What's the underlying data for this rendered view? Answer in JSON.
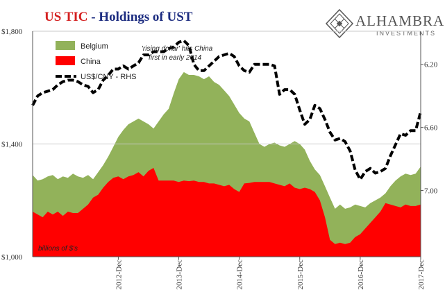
{
  "header": {
    "title": "US TIC",
    "subtitle": " - Holdings of UST"
  },
  "logo": {
    "name": "ALHAMBRA",
    "sub": "INVESTMENTS"
  },
  "chart_data": {
    "type": "area",
    "title": "US TIC - Holdings of UST",
    "units_note": "billions of $'s",
    "annotation": [
      "'rising dollar' hits China",
      "first in early 2014"
    ],
    "legend": [
      {
        "name": "Belgium",
        "color": "#92b25a",
        "kind": "area"
      },
      {
        "name": "China",
        "color": "#ff0000",
        "kind": "area"
      },
      {
        "name": "US$/CNY - RHS",
        "color": "#000000",
        "kind": "dashed-line"
      }
    ],
    "x_tick_labels": [
      "2012-Dec",
      "2013-Dec",
      "2014-Dec",
      "2015-Dec",
      "2016-Dec",
      "2017-Dec"
    ],
    "y_left": {
      "ticks": [
        "$1,000",
        "$1,400",
        "$1,800"
      ],
      "ylim": [
        1000,
        1800
      ]
    },
    "y_right": {
      "ticks": [
        "6.20",
        "6.60",
        "7.00"
      ],
      "ylim": [
        5.99,
        7.42
      ],
      "inverted": true
    },
    "x": [
      "2011-07",
      "2011-08",
      "2011-09",
      "2011-10",
      "2011-11",
      "2011-12",
      "2012-01",
      "2012-02",
      "2012-03",
      "2012-04",
      "2012-05",
      "2012-06",
      "2012-07",
      "2012-08",
      "2012-09",
      "2012-10",
      "2012-11",
      "2012-12",
      "2013-01",
      "2013-02",
      "2013-03",
      "2013-04",
      "2013-05",
      "2013-06",
      "2013-07",
      "2013-08",
      "2013-09",
      "2013-10",
      "2013-11",
      "2013-12",
      "2014-01",
      "2014-02",
      "2014-03",
      "2014-04",
      "2014-05",
      "2014-06",
      "2014-07",
      "2014-08",
      "2014-09",
      "2014-10",
      "2014-11",
      "2014-12",
      "2015-01",
      "2015-02",
      "2015-03",
      "2015-04",
      "2015-05",
      "2015-06",
      "2015-07",
      "2015-08",
      "2015-09",
      "2015-10",
      "2015-11",
      "2015-12",
      "2016-01",
      "2016-02",
      "2016-03",
      "2016-04",
      "2016-05",
      "2016-06",
      "2016-07",
      "2016-08",
      "2016-09",
      "2016-10",
      "2016-11",
      "2016-12",
      "2017-01",
      "2017-02",
      "2017-03",
      "2017-04",
      "2017-05",
      "2017-06",
      "2017-07",
      "2017-08",
      "2017-09",
      "2017-10",
      "2017-11",
      "2017-12"
    ],
    "series": [
      {
        "name": "Belgium",
        "values": [
          1290,
          1270,
          1275,
          1285,
          1290,
          1275,
          1285,
          1280,
          1295,
          1285,
          1280,
          1290,
          1275,
          1300,
          1325,
          1355,
          1390,
          1425,
          1450,
          1470,
          1480,
          1490,
          1480,
          1470,
          1455,
          1480,
          1505,
          1525,
          1580,
          1630,
          1655,
          1645,
          1645,
          1640,
          1630,
          1640,
          1620,
          1610,
          1590,
          1570,
          1540,
          1510,
          1490,
          1480,
          1440,
          1400,
          1390,
          1400,
          1405,
          1395,
          1390,
          1400,
          1410,
          1400,
          1380,
          1340,
          1310,
          1290,
          1250,
          1210,
          1170,
          1185,
          1170,
          1175,
          1185,
          1180,
          1175,
          1190,
          1200,
          1210,
          1225,
          1250,
          1270,
          1285,
          1295,
          1290,
          1295,
          1320
        ]
      },
      {
        "name": "China",
        "values": [
          1160,
          1150,
          1140,
          1160,
          1150,
          1160,
          1145,
          1160,
          1155,
          1155,
          1170,
          1185,
          1210,
          1220,
          1245,
          1265,
          1280,
          1285,
          1275,
          1285,
          1290,
          1300,
          1285,
          1305,
          1315,
          1270,
          1270,
          1270,
          1270,
          1265,
          1270,
          1268,
          1270,
          1265,
          1265,
          1260,
          1260,
          1255,
          1250,
          1255,
          1240,
          1230,
          1260,
          1262,
          1265,
          1265,
          1265,
          1265,
          1260,
          1255,
          1250,
          1260,
          1245,
          1240,
          1245,
          1240,
          1230,
          1200,
          1140,
          1060,
          1045,
          1050,
          1045,
          1050,
          1070,
          1080,
          1100,
          1120,
          1140,
          1160,
          1190,
          1185,
          1180,
          1175,
          1185,
          1180,
          1180,
          1185
        ]
      },
      {
        "name": "US$/CNY - RHS",
        "values": [
          6.46,
          6.4,
          6.38,
          6.37,
          6.36,
          6.33,
          6.31,
          6.3,
          6.3,
          6.31,
          6.33,
          6.34,
          6.38,
          6.36,
          6.3,
          6.27,
          6.23,
          6.23,
          6.21,
          6.23,
          6.21,
          6.19,
          6.14,
          6.14,
          6.12,
          6.12,
          6.12,
          6.1,
          6.09,
          6.06,
          6.05,
          6.08,
          6.2,
          6.24,
          6.24,
          6.21,
          6.18,
          6.15,
          6.14,
          6.13,
          6.15,
          6.21,
          6.24,
          6.25,
          6.2,
          6.2,
          6.2,
          6.2,
          6.21,
          6.39,
          6.36,
          6.36,
          6.39,
          6.49,
          6.58,
          6.55,
          6.46,
          6.48,
          6.55,
          6.63,
          6.68,
          6.67,
          6.69,
          6.75,
          6.87,
          6.93,
          6.88,
          6.86,
          6.89,
          6.88,
          6.86,
          6.78,
          6.71,
          6.64,
          6.65,
          6.62,
          6.62,
          6.5
        ]
      }
    ]
  }
}
